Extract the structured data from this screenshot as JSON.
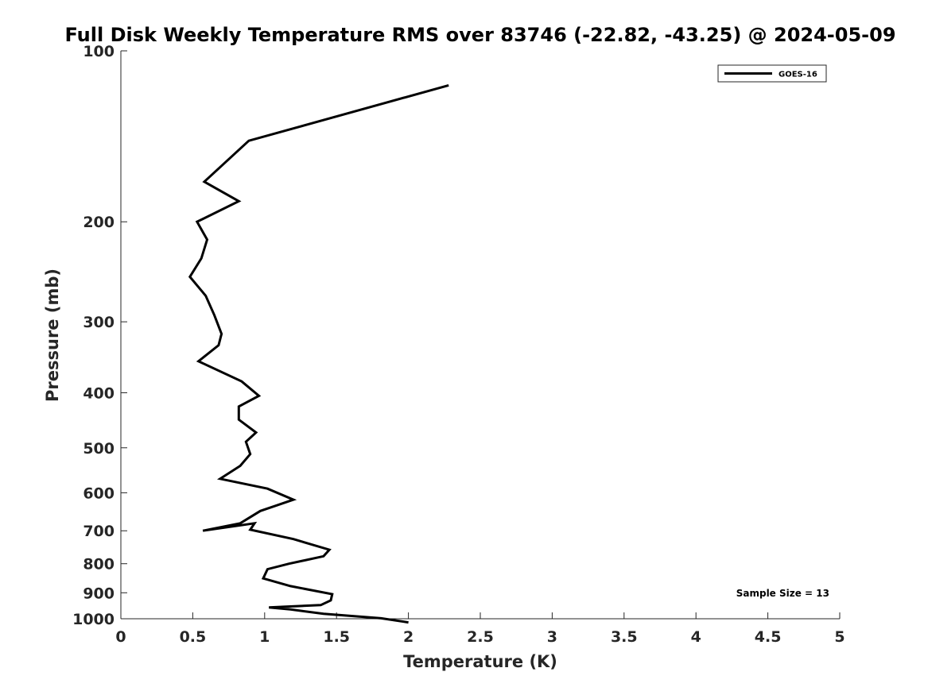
{
  "chart_data": {
    "type": "line",
    "title": "Full Disk Weekly Temperature RMS over 83746 (-22.82, -43.25) @ 2024-05-09",
    "xlabel": "Temperature (K)",
    "ylabel": "Pressure (mb)",
    "xlim": [
      0,
      5
    ],
    "ylim": [
      100,
      1000
    ],
    "y_scale": "log",
    "y_reversed": true,
    "x_ticks": [
      0,
      0.5,
      1,
      1.5,
      2,
      2.5,
      3,
      3.5,
      4,
      4.5,
      5
    ],
    "x_tick_labels": [
      "0",
      "0.5",
      "1",
      "1.5",
      "2",
      "2.5",
      "3",
      "3.5",
      "4",
      "4.5",
      "5"
    ],
    "y_ticks": [
      100,
      200,
      300,
      400,
      500,
      600,
      700,
      800,
      900,
      1000
    ],
    "y_tick_labels": [
      "100",
      "200",
      "300",
      "400",
      "500",
      "600",
      "700",
      "800",
      "900",
      "1000"
    ],
    "grid": false,
    "legend_position": "top-right",
    "annotation": "Sample Size = 13",
    "series": [
      {
        "name": "GOES-16",
        "color": "#000000",
        "x": [
          2.28,
          0.89,
          0.58,
          0.82,
          0.53,
          0.6,
          0.56,
          0.48,
          0.59,
          0.65,
          0.7,
          0.68,
          0.54,
          0.84,
          0.96,
          0.82,
          0.82,
          0.94,
          0.87,
          0.9,
          0.83,
          0.69,
          1.02,
          1.2,
          0.97,
          0.83,
          0.57,
          0.93,
          0.9,
          1.2,
          1.45,
          1.41,
          1.17,
          1.02,
          0.99,
          1.18,
          1.47,
          1.46,
          1.39,
          1.03,
          1.18,
          1.41,
          1.81,
          2.0
        ],
        "y": [
          115,
          144,
          170,
          184,
          200,
          215,
          232,
          250,
          270,
          292,
          315,
          330,
          352,
          382,
          405,
          423,
          446,
          470,
          488,
          513,
          538,
          567,
          590,
          617,
          646,
          679,
          700,
          679,
          697,
          724,
          756,
          776,
          800,
          818,
          849,
          876,
          905,
          928,
          946,
          955,
          963,
          980,
          998,
          1015
        ]
      }
    ]
  }
}
